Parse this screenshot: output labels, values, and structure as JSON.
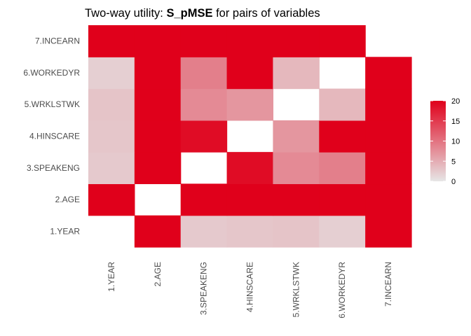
{
  "chart_data": {
    "type": "heatmap",
    "title": {
      "prefix": "Two-way utility: ",
      "bold": "S_pMSE",
      "suffix": " for pairs of variables"
    },
    "xlabel": "",
    "ylabel": "",
    "x_categories": [
      "1.YEAR",
      "2.AGE",
      "3.SPEAKENG",
      "4.HINSCARE",
      "5.WRKLSTWK",
      "6.WORKEDYR",
      "7.INCEARN"
    ],
    "y_categories": [
      "1.YEAR",
      "2.AGE",
      "3.SPEAKENG",
      "4.HINSCARE",
      "5.WRKLSTWK",
      "6.WORKEDYR",
      "7.INCEARN"
    ],
    "matrix": [
      [
        null,
        20,
        2.5,
        2.8,
        3,
        2,
        20
      ],
      [
        20,
        null,
        20,
        20,
        20,
        20,
        20
      ],
      [
        2.5,
        20,
        null,
        19,
        8,
        9,
        20
      ],
      [
        2.8,
        20,
        19,
        null,
        7,
        20,
        20
      ],
      [
        3,
        20,
        8,
        7,
        null,
        4,
        20
      ],
      [
        2,
        20,
        9,
        20,
        4,
        null,
        20
      ],
      [
        20,
        20,
        20,
        20,
        20,
        20,
        null
      ]
    ],
    "color_scale": {
      "min": 0,
      "max": 20,
      "low_color": "#e6e6e6",
      "high_color": "#e0001b"
    },
    "legend": {
      "ticks": [
        0,
        5,
        10,
        15,
        20
      ],
      "placement": "right"
    },
    "grid": false
  }
}
